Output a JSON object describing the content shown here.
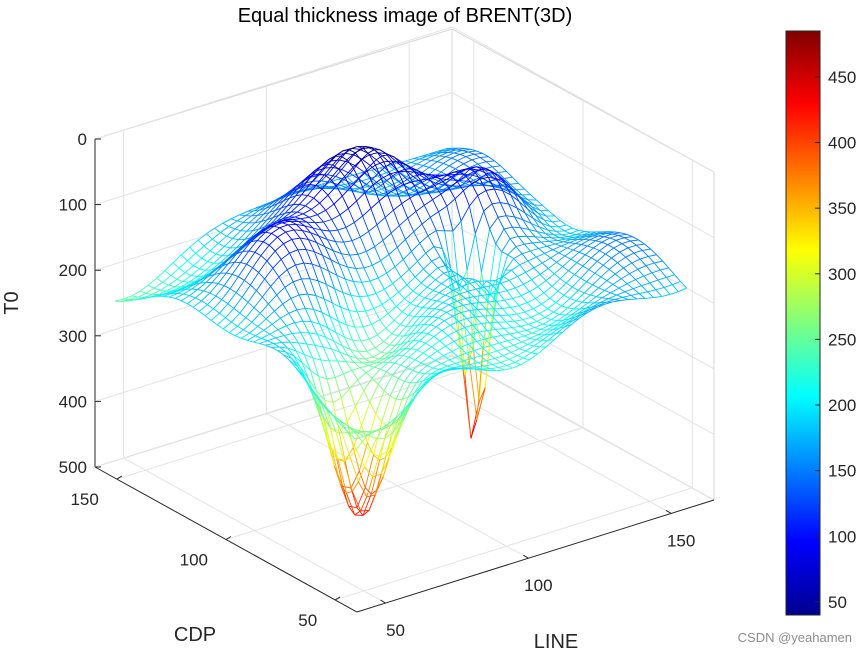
{
  "chart_data": {
    "type": "surface-mesh-3d",
    "title": "Equal thickness image of BRENT(3D)",
    "xlabel": "LINE",
    "ylabel": "CDP",
    "zlabel": "T0",
    "xlim": [
      40,
      165
    ],
    "ylim": [
      40,
      160
    ],
    "zlim": [
      0,
      500
    ],
    "z_direction": "reverse",
    "xticks": [
      50,
      100,
      150
    ],
    "yticks": [
      50,
      100,
      150
    ],
    "zticks": [
      0,
      100,
      200,
      300,
      400,
      500
    ],
    "grid": true,
    "colormap": "jet",
    "colorbar": {
      "range": [
        40,
        485
      ],
      "ticks": [
        50,
        100,
        150,
        200,
        250,
        300,
        350,
        400,
        450
      ]
    },
    "surface_description_points": [
      {
        "line": 48,
        "cdp": 48,
        "t0": 245
      },
      {
        "line": 44,
        "cdp": 150,
        "t0": 245
      },
      {
        "line": 158,
        "cdp": 155,
        "t0": 175
      },
      {
        "line": 155,
        "cdp": 48,
        "t0": 190
      },
      {
        "line": 60,
        "cdp": 65,
        "t0": 380
      },
      {
        "line": 123,
        "cdp": 95,
        "t0": 480
      },
      {
        "line": 110,
        "cdp": 120,
        "t0": 40
      }
    ],
    "grid_size": [
      40,
      40
    ]
  },
  "watermark": "CSDN @yeahamen"
}
